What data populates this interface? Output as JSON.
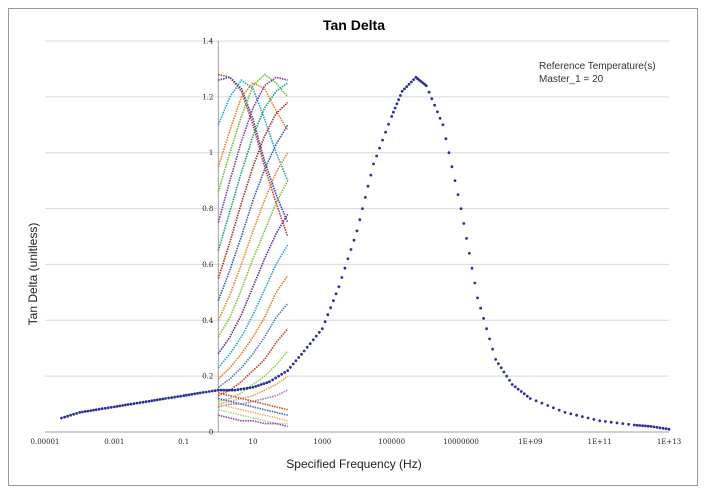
{
  "chart_data": {
    "type": "scatter",
    "title": "Tan Delta",
    "xlabel": "Specified Frequency (Hz)",
    "ylabel": "Tan Delta (unitless)",
    "x_scale": "log",
    "xlim": [
      1e-05,
      10000000000000
    ],
    "ylim": [
      0,
      1.4
    ],
    "x_ticks": [
      {
        "value": 1e-05,
        "label": "0.00001"
      },
      {
        "value": 0.001,
        "label": "0.001"
      },
      {
        "value": 0.1,
        "label": "0.1"
      },
      {
        "value": 10,
        "label": "10"
      },
      {
        "value": 1000,
        "label": "1000"
      },
      {
        "value": 100000,
        "label": "100000"
      },
      {
        "value": 10000000,
        "label": "10000000"
      },
      {
        "value": 1000000000,
        "label": "1E+09"
      },
      {
        "value": 100000000000,
        "label": "1E+11"
      },
      {
        "value": 10000000000000,
        "label": "1E+13"
      }
    ],
    "y_ticks": [
      {
        "value": 0,
        "label": "0"
      },
      {
        "value": 0.2,
        "label": "0.2"
      },
      {
        "value": 0.4,
        "label": "0.4"
      },
      {
        "value": 0.6,
        "label": "0.6"
      },
      {
        "value": 0.8,
        "label": "0.8"
      },
      {
        "value": 1,
        "label": "1"
      },
      {
        "value": 1.2,
        "label": "1.2"
      },
      {
        "value": 1.4,
        "label": "1.4"
      }
    ],
    "grid": "horizontal",
    "annotation": [
      "Reference Temperature(s)",
      "Master_1 = 20"
    ],
    "master_curve": {
      "color": "#2b2f9a",
      "points": [
        [
          3e-05,
          0.05
        ],
        [
          0.0001,
          0.07
        ],
        [
          0.0003,
          0.08
        ],
        [
          0.001,
          0.09
        ],
        [
          0.003,
          0.1
        ],
        [
          0.01,
          0.11
        ],
        [
          0.03,
          0.12
        ],
        [
          0.1,
          0.13
        ],
        [
          0.3,
          0.14
        ],
        [
          1,
          0.15
        ],
        [
          3,
          0.15
        ],
        [
          10,
          0.16
        ],
        [
          30,
          0.18
        ],
        [
          100,
          0.22
        ],
        [
          300,
          0.29
        ],
        [
          1000,
          0.37
        ],
        [
          3000,
          0.52
        ],
        [
          10000,
          0.72
        ],
        [
          30000,
          0.96
        ],
        [
          100000,
          1.13
        ],
        [
          200000,
          1.22
        ],
        [
          500000,
          1.27
        ],
        [
          1000000,
          1.24
        ],
        [
          3000000,
          1.1
        ],
        [
          10000000,
          0.8
        ],
        [
          30000000,
          0.48
        ],
        [
          100000000,
          0.26
        ],
        [
          300000000,
          0.17
        ],
        [
          1000000000,
          0.12
        ],
        [
          10000000000,
          0.07
        ],
        [
          100000000000,
          0.04
        ],
        [
          1000000000000,
          0.025
        ],
        [
          3000000000000,
          0.02
        ],
        [
          10000000000000,
          0.01
        ]
      ]
    },
    "isotherm_x_range": [
      1,
      100
    ],
    "isotherm_series": [
      {
        "color": "#c0392b",
        "values": [
          1.28,
          1.27,
          1.22,
          1.1,
          0.95,
          0.82,
          0.7
        ]
      },
      {
        "color": "#2e4a9e",
        "values": [
          1.26,
          1.27,
          1.23,
          1.12,
          0.97,
          0.85,
          0.75
        ]
      },
      {
        "color": "#27a2c9",
        "values": [
          1.1,
          1.2,
          1.26,
          1.23,
          1.12,
          1.0,
          0.9
        ]
      },
      {
        "color": "#e67e22",
        "values": [
          0.95,
          1.08,
          1.2,
          1.25,
          1.23,
          1.15,
          1.08
        ]
      },
      {
        "color": "#6bbd3a",
        "values": [
          0.86,
          1.0,
          1.13,
          1.24,
          1.28,
          1.25,
          1.2
        ]
      },
      {
        "color": "#7a3fa0",
        "values": [
          0.75,
          0.9,
          1.04,
          1.16,
          1.24,
          1.27,
          1.26
        ]
      },
      {
        "color": "#1b9e77",
        "values": [
          0.65,
          0.79,
          0.93,
          1.06,
          1.16,
          1.22,
          1.25
        ]
      },
      {
        "color": "#a6322a",
        "values": [
          0.55,
          0.68,
          0.82,
          0.95,
          1.06,
          1.14,
          1.18
        ]
      },
      {
        "color": "#3b5bb0",
        "values": [
          0.47,
          0.58,
          0.7,
          0.83,
          0.94,
          1.03,
          1.1
        ]
      },
      {
        "color": "#e08a2a",
        "values": [
          0.4,
          0.49,
          0.6,
          0.72,
          0.83,
          0.93,
          1.0
        ]
      },
      {
        "color": "#7fbf3f",
        "values": [
          0.34,
          0.41,
          0.51,
          0.62,
          0.72,
          0.82,
          0.9
        ]
      },
      {
        "color": "#5e2f8f",
        "values": [
          0.28,
          0.34,
          0.42,
          0.52,
          0.62,
          0.71,
          0.78
        ]
      },
      {
        "color": "#2aa7c7",
        "values": [
          0.23,
          0.28,
          0.34,
          0.42,
          0.51,
          0.6,
          0.67
        ]
      },
      {
        "color": "#e07b20",
        "values": [
          0.19,
          0.23,
          0.28,
          0.34,
          0.41,
          0.5,
          0.56
        ]
      },
      {
        "color": "#4a7cc0",
        "values": [
          0.16,
          0.19,
          0.23,
          0.28,
          0.34,
          0.41,
          0.46
        ]
      },
      {
        "color": "#c43a31",
        "values": [
          0.13,
          0.15,
          0.18,
          0.22,
          0.26,
          0.32,
          0.37
        ]
      },
      {
        "color": "#9acb5b",
        "values": [
          0.11,
          0.12,
          0.14,
          0.17,
          0.2,
          0.24,
          0.29
        ]
      },
      {
        "color": "#e6a23c",
        "values": [
          0.1,
          0.11,
          0.12,
          0.13,
          0.15,
          0.17,
          0.2
        ]
      },
      {
        "color": "#9b7bc4",
        "values": [
          0.09,
          0.1,
          0.1,
          0.11,
          0.12,
          0.13,
          0.15
        ]
      },
      {
        "color": "#d04a3a",
        "values": [
          0.14,
          0.13,
          0.12,
          0.11,
          0.1,
          0.09,
          0.08
        ]
      },
      {
        "color": "#3a6bb5",
        "values": [
          0.12,
          0.11,
          0.1,
          0.09,
          0.08,
          0.07,
          0.06
        ]
      },
      {
        "color": "#f2b36a",
        "values": [
          0.1,
          0.09,
          0.08,
          0.07,
          0.06,
          0.05,
          0.04
        ]
      },
      {
        "color": "#b0d77f",
        "values": [
          0.08,
          0.07,
          0.06,
          0.05,
          0.04,
          0.03,
          0.03
        ]
      },
      {
        "color": "#8e44ad",
        "values": [
          0.06,
          0.05,
          0.04,
          0.04,
          0.03,
          0.03,
          0.02
        ]
      }
    ]
  }
}
